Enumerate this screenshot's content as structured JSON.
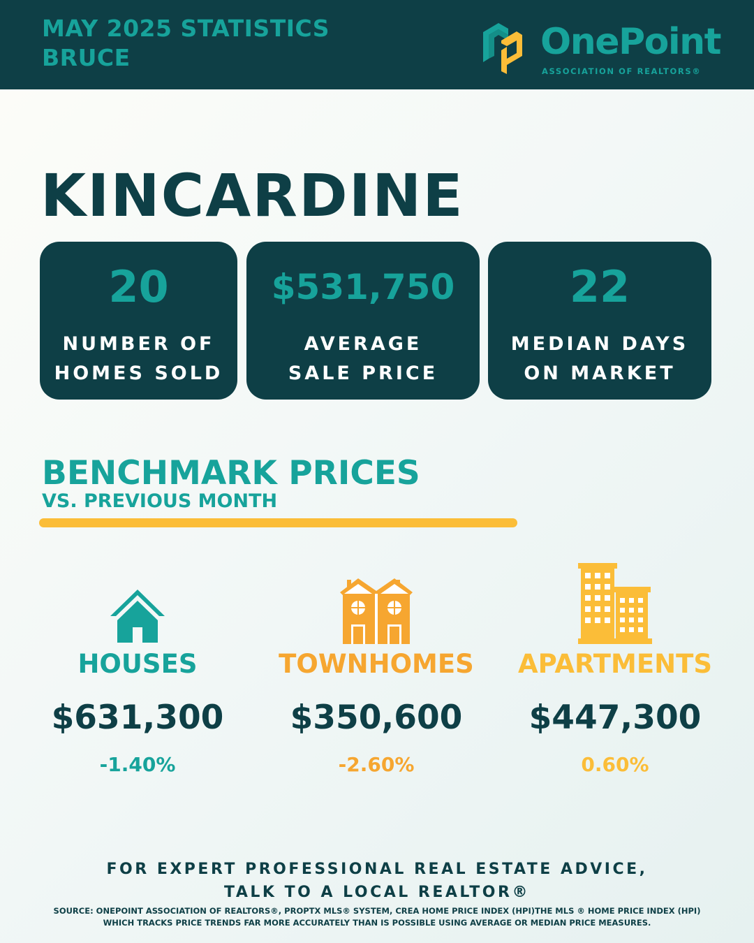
{
  "header": {
    "title_line1": "MAY 2025 STATISTICS",
    "title_line2": "BRUCE",
    "logo_name": "OnePoint",
    "logo_sub": "ASSOCIATION OF REALTORS®",
    "icon": "onepoint-logo-icon"
  },
  "city": "KINCARDINE",
  "stats": [
    {
      "value": "20",
      "label": "NUMBER OF\nHOMES SOLD"
    },
    {
      "value": "$531,750",
      "label": "AVERAGE\nSALE PRICE"
    },
    {
      "value": "22",
      "label": "MEDIAN DAYS\nON MARKET"
    }
  ],
  "benchmark": {
    "title": "BENCHMARK PRICES",
    "subtitle": "VS. PREVIOUS MONTH",
    "items": [
      {
        "label": "HOUSES",
        "price": "$631,300",
        "change": "-1.40%",
        "icon": "house-icon",
        "color": "#17a39b"
      },
      {
        "label": "TOWNHOMES",
        "price": "$350,600",
        "change": "-2.60%",
        "icon": "townhome-icon",
        "color": "#f6a630"
      },
      {
        "label": "APARTMENTS",
        "price": "$447,300",
        "change": "0.60%",
        "icon": "apartment-icon",
        "color": "#fbbd38"
      }
    ]
  },
  "footer": {
    "cta_line1": "FOR EXPERT PROFESSIONAL REAL ESTATE ADVICE,",
    "cta_line2": "TALK TO A LOCAL REALTOR®",
    "source": "SOURCE: ONEPOINT ASSOCIATION OF REALTORS®, PROPTX MLS® SYSTEM, CREA HOME PRICE INDEX (HPI)THE MLS ® HOME PRICE INDEX (HPI) WHICH TRACKS PRICE TRENDS FAR MORE ACCURATELY THAN IS POSSIBLE USING AVERAGE OR MEDIAN PRICE MEASURES."
  },
  "colors": {
    "dark_teal": "#0e3f46",
    "teal": "#17a39b",
    "orange": "#f6a630",
    "yellow": "#fbbd38"
  }
}
